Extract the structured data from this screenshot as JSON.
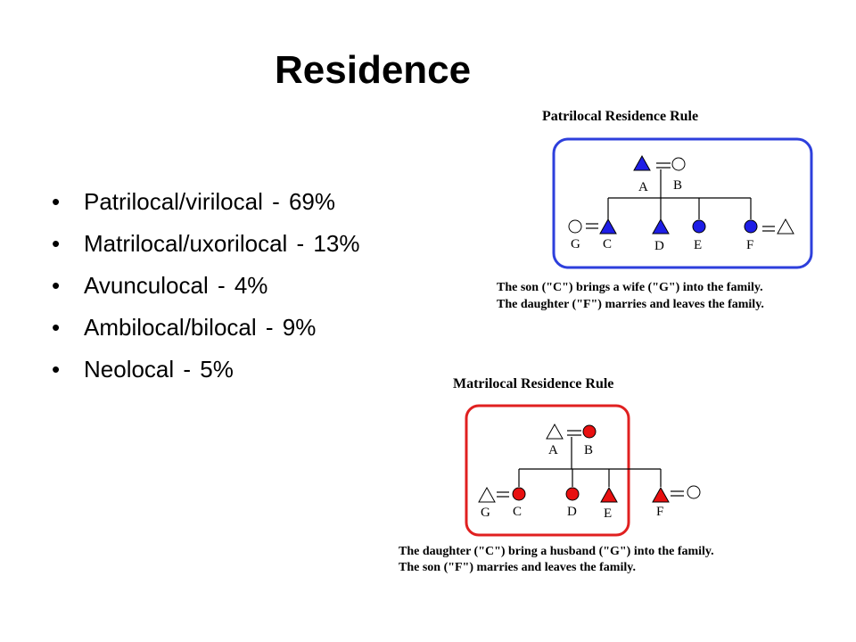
{
  "title": "Residence",
  "bullets": [
    {
      "label": "Patrilocal/virilocal",
      "percent": "- 69%"
    },
    {
      "label": "Matrilocal/uxorilocal",
      "percent": "- 13%"
    },
    {
      "label": "Avunculocal",
      "percent": "- 4%"
    },
    {
      "label": "Ambilocal/bilocal",
      "percent": "- 9%"
    },
    {
      "label": "Neolocal",
      "percent": "- 5%"
    }
  ],
  "patrilocal": {
    "title": "Patrilocal Residence Rule",
    "caption_1": "The son (\"C\") brings a wife (\"G\") into the family.",
    "caption_2": "The daughter (\"F\") marries and leaves the family.",
    "labels": {
      "A": "A",
      "B": "B",
      "C": "C",
      "D": "D",
      "E": "E",
      "F": "F",
      "G": "G"
    },
    "frame_color": "#2d3fdc",
    "fill_color": "#1e1ee6"
  },
  "matrilocal": {
    "title": "Matrilocal Residence Rule",
    "caption_1": "The daughter (\"C\") bring a husband (\"G\") into the family.",
    "caption_2": "The son (\"F\") marries and leaves the family.",
    "labels": {
      "A": "A",
      "B": "B",
      "C": "C",
      "D": "D",
      "E": "E",
      "F": "F",
      "G": "G"
    },
    "frame_color": "#e02020",
    "fill_color": "#e81010"
  }
}
